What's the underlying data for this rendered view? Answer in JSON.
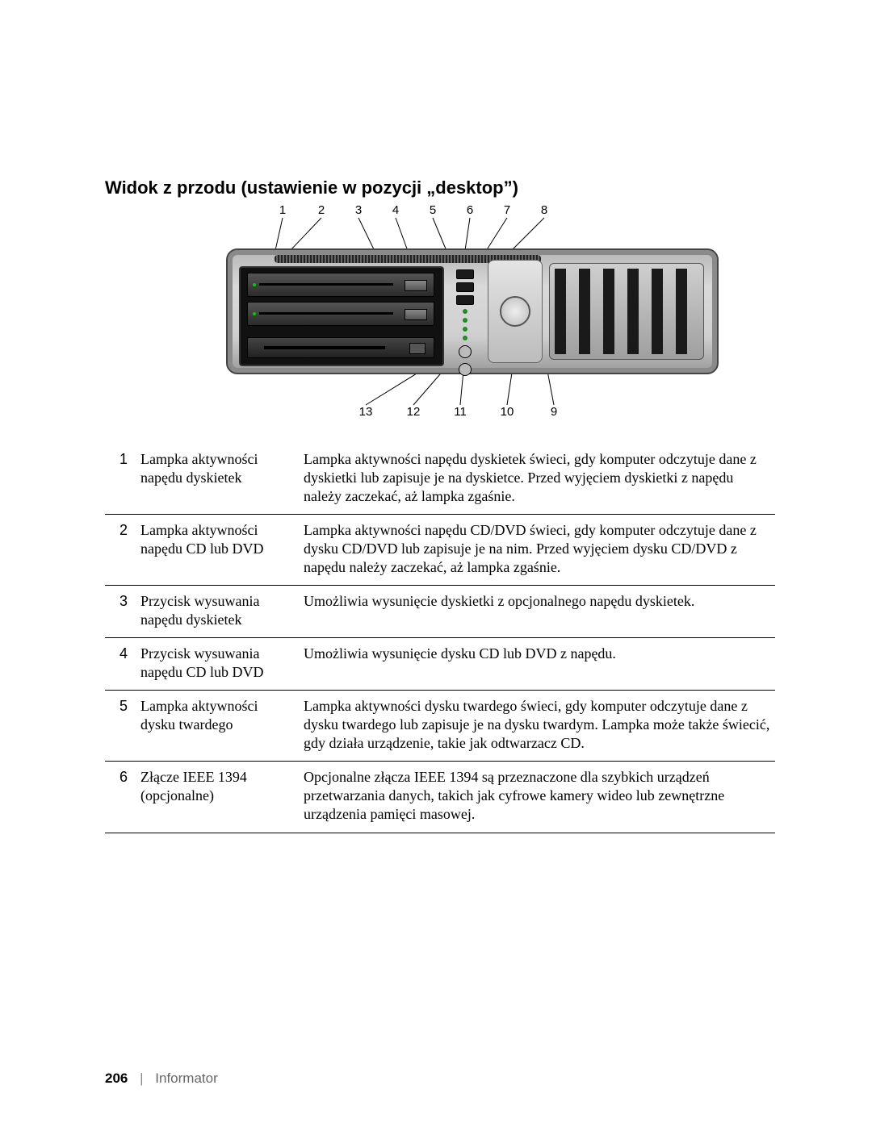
{
  "title": "Widok z przodu (ustawienie w pozycji „desktop”)",
  "labels_top": {
    "1": "1",
    "2": "2",
    "3": "3",
    "4": "4",
    "5": "5",
    "6": "6",
    "7": "7",
    "8": "8"
  },
  "labels_bottom": {
    "9": "9",
    "10": "10",
    "11": "11",
    "12": "12",
    "13": "13"
  },
  "top_x": {
    "1": 130,
    "2": 178,
    "3": 224,
    "4": 270,
    "5": 316,
    "6": 362,
    "7": 408,
    "8": 454
  },
  "bottom_x": {
    "13": 233,
    "12": 292,
    "11": 350,
    "10": 408,
    "9": 466
  },
  "leader_color": "#000000",
  "rows": [
    {
      "n": "1",
      "name": "Lampka aktywności napędu dyskietek",
      "desc": "Lampka aktywności napędu dyskietek świeci, gdy komputer odczytuje dane z dyskietki lub zapisuje je na dyskietce. Przed wyjęciem dyskietki z napędu należy zaczekać, aż lampka zgaśnie."
    },
    {
      "n": "2",
      "name": "Lampka aktywności napędu CD lub DVD",
      "desc": "Lampka aktywności napędu CD/DVD świeci, gdy komputer odczytuje dane z dysku CD/DVD lub zapisuje je na nim. Przed wyjęciem dysku CD/DVD z napędu należy zaczekać, aż lampka zgaśnie."
    },
    {
      "n": "3",
      "name": "Przycisk wysuwania napędu dyskietek",
      "desc": "Umożliwia wysunięcie dyskietki z opcjonalnego napędu dyskietek."
    },
    {
      "n": "4",
      "name": "Przycisk wysuwania napędu CD lub DVD",
      "desc": "Umożliwia wysunięcie dysku CD lub DVD z napędu."
    },
    {
      "n": "5",
      "name": "Lampka aktywności dysku twardego",
      "desc": "Lampka aktywności dysku twardego świeci, gdy komputer odczytuje dane z dysku twardego lub zapisuje je na dysku twardym. Lampka może także świecić, gdy działa urządzenie, takie jak odtwarzacz CD."
    },
    {
      "n": "6",
      "name": "Złącze IEEE 1394 (opcjonalne)",
      "desc": "Opcjonalne złącza IEEE 1394 są przeznaczone dla szybkich urządzeń przetwarzania danych, takich jak cyfrowe kamery wideo lub zewnętrzne urządzenia pamięci masowej."
    }
  ],
  "footer": {
    "page": "206",
    "section": "Informator"
  }
}
